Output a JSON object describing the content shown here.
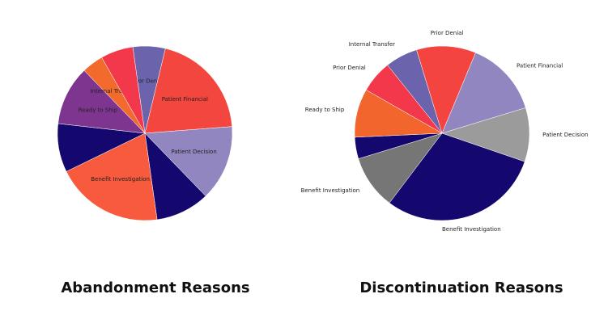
{
  "chart_data": [
    {
      "type": "pie",
      "title": "Abandonment Reasons",
      "categories": [
        "Prior Denial",
        "Patient Financial",
        "Patient Decision",
        null,
        "Benefit Investigation",
        null,
        "Ready to Ship",
        "Internal Transfer",
        null
      ],
      "values": [
        6,
        20,
        14,
        10,
        20,
        9,
        11,
        4,
        6
      ],
      "colors": [
        "#6b63ac",
        "#f3463f",
        "#9286c0",
        "#14086e",
        "#f75a3c",
        "#14086e",
        "#7e3590",
        "#f26a2c",
        "#f2384a"
      ],
      "label_position": "inside"
    },
    {
      "type": "pie",
      "title": "Discontinuation Reasons",
      "categories": [
        "Prior Denial",
        "Patient Financial",
        "Patient Decision",
        "Benefit Investigation",
        "Benefit Investigation",
        null,
        "Ready to Ship",
        "Prior Denial",
        "Internal Transfer"
      ],
      "values": [
        11,
        14,
        10,
        30,
        10,
        4,
        9,
        6,
        6
      ],
      "colors": [
        "#f3443f",
        "#9286c0",
        "#9b9b9b",
        "#14086e",
        "#767676",
        "#14086e",
        "#f2652c",
        "#f2384a",
        "#6b63ac"
      ],
      "label_position": "outside"
    }
  ]
}
